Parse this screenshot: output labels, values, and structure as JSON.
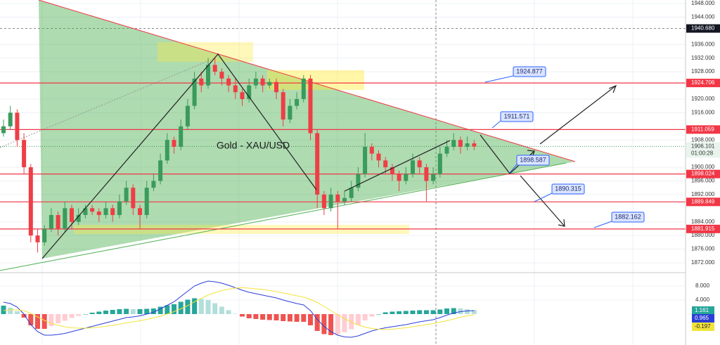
{
  "chart_data": [
    {
      "type": "candlestick",
      "title": "Gold - XAU/USD",
      "ohlc": [
        [
          1910,
          1914,
          1909,
          1912
        ],
        [
          1912,
          1918,
          1911,
          1916
        ],
        [
          1916,
          1917,
          1906,
          1908
        ],
        [
          1908,
          1910,
          1898,
          1900
        ],
        [
          1900,
          1901,
          1878,
          1880
        ],
        [
          1880,
          1882,
          1875,
          1878
        ],
        [
          1878,
          1883,
          1877,
          1882
        ],
        [
          1882,
          1888,
          1881,
          1886
        ],
        [
          1886,
          1887,
          1880,
          1882
        ],
        [
          1882,
          1890,
          1881,
          1888
        ],
        [
          1888,
          1889,
          1882,
          1884
        ],
        [
          1884,
          1888,
          1883,
          1886
        ],
        [
          1886,
          1889,
          1885,
          1888
        ],
        [
          1888,
          1889,
          1886,
          1887
        ],
        [
          1887,
          1888,
          1884,
          1886
        ],
        [
          1886,
          1890,
          1885,
          1888
        ],
        [
          1888,
          1889,
          1884,
          1886
        ],
        [
          1886,
          1892,
          1885,
          1890
        ],
        [
          1890,
          1896,
          1889,
          1894
        ],
        [
          1894,
          1895,
          1886,
          1888
        ],
        [
          1888,
          1889,
          1882,
          1886
        ],
        [
          1886,
          1896,
          1885,
          1894
        ],
        [
          1894,
          1898,
          1893,
          1896
        ],
        [
          1896,
          1904,
          1895,
          1902
        ],
        [
          1902,
          1910,
          1901,
          1908
        ],
        [
          1908,
          1909,
          1904,
          1906
        ],
        [
          1906,
          1914,
          1905,
          1912
        ],
        [
          1912,
          1920,
          1911,
          1918
        ],
        [
          1918,
          1928,
          1917,
          1926
        ],
        [
          1926,
          1928,
          1922,
          1924
        ],
        [
          1924,
          1932,
          1923,
          1930
        ],
        [
          1930,
          1932,
          1927,
          1928
        ],
        [
          1928,
          1929,
          1924,
          1926
        ],
        [
          1926,
          1927,
          1922,
          1924
        ],
        [
          1924,
          1926,
          1920,
          1922
        ],
        [
          1922,
          1923,
          1918,
          1920
        ],
        [
          1920,
          1926,
          1919,
          1924
        ],
        [
          1924,
          1928,
          1923,
          1926
        ],
        [
          1926,
          1927,
          1922,
          1924
        ],
        [
          1924,
          1926,
          1923,
          1925
        ],
        [
          1925,
          1926,
          1920,
          1922
        ],
        [
          1922,
          1923,
          1912,
          1914
        ],
        [
          1914,
          1920,
          1913,
          1918
        ],
        [
          1918,
          1922,
          1917,
          1920
        ],
        [
          1920,
          1927,
          1919,
          1926
        ],
        [
          1926,
          1927,
          1908,
          1910
        ],
        [
          1910,
          1911,
          1888,
          1892
        ],
        [
          1892,
          1893,
          1886,
          1888
        ],
        [
          1888,
          1894,
          1887,
          1892
        ],
        [
          1892,
          1893,
          1882,
          1890
        ],
        [
          1890,
          1893,
          1889,
          1891
        ],
        [
          1891,
          1896,
          1890,
          1894
        ],
        [
          1894,
          1900,
          1893,
          1898
        ],
        [
          1898,
          1910,
          1897,
          1906
        ],
        [
          1906,
          1907,
          1902,
          1904
        ],
        [
          1904,
          1905,
          1900,
          1902
        ],
        [
          1902,
          1903,
          1898,
          1900
        ],
        [
          1900,
          1901,
          1896,
          1898
        ],
        [
          1898,
          1899,
          1893,
          1896
        ],
        [
          1896,
          1900,
          1895,
          1898
        ],
        [
          1898,
          1904,
          1897,
          1902
        ],
        [
          1902,
          1903,
          1898,
          1900
        ],
        [
          1900,
          1901,
          1890,
          1896
        ],
        [
          1896,
          1900,
          1895,
          1898
        ],
        [
          1898,
          1906,
          1897,
          1904
        ],
        [
          1904,
          1908,
          1903,
          1906
        ],
        [
          1906,
          1910,
          1905,
          1908
        ],
        [
          1908,
          1909,
          1904,
          1906
        ],
        [
          1906,
          1909,
          1905,
          1907
        ],
        [
          1907,
          1908,
          1905,
          1906.101
        ]
      ],
      "up_color": "#3a9b5c",
      "down_color": "#ef3e45",
      "ylim": [
        1869.73,
        1949.03
      ],
      "yticks": [
        {
          "value": 1948,
          "label": "1948.000"
        },
        {
          "value": 1944,
          "label": "1944.000"
        },
        {
          "value": 1936,
          "label": "1936.000"
        },
        {
          "value": 1932,
          "label": "1932.000"
        },
        {
          "value": 1928,
          "label": "1928.000"
        },
        {
          "value": 1920,
          "label": "1920.000"
        },
        {
          "value": 1916,
          "label": "1916.000"
        },
        {
          "value": 1908,
          "label": "1908.000"
        },
        {
          "value": 1900,
          "label": "1900.000"
        },
        {
          "value": 1896,
          "label": "1896.000"
        },
        {
          "value": 1892,
          "label": "1892.000"
        },
        {
          "value": 1884,
          "label": "1884.000"
        },
        {
          "value": 1880,
          "label": "1880.000"
        },
        {
          "value": 1876,
          "label": "1876.000"
        },
        {
          "value": 1872,
          "label": "1872.000"
        }
      ],
      "grid": true,
      "levels": [
        1924.706,
        1911.059,
        1898.024,
        1889.849,
        1881.915
      ],
      "level_color": "#f23645",
      "crosshair": {
        "value": 1940.68,
        "label": "1940.680"
      },
      "countdown": "01:00:28",
      "annotations": [
        1924.877,
        1911.571,
        1898.587,
        1890.315,
        1882.162
      ]
    },
    {
      "type": "macd",
      "ylim": [
        -8.8,
        11.4
      ],
      "yticks": [
        {
          "value": 8,
          "label": "8.000"
        },
        {
          "value": 4,
          "label": "4.000"
        }
      ],
      "histogram": {
        "up_color": "#26a69a",
        "up_fade": "#b2dfdb",
        "down_color": "#ef5350",
        "down_fade": "#ffcdd2",
        "values": [
          2.4,
          1.8,
          0.8,
          -1,
          -3.2,
          -4.2,
          -4.2,
          -3.4,
          -2.6,
          -1.9,
          -1.1,
          -0.5,
          0,
          0.4,
          0.7,
          1,
          1.2,
          1.4,
          1.5,
          1.4,
          1.4,
          1.5,
          1.6,
          2.1,
          2.5,
          2.8,
          3.5,
          4.1,
          4.5,
          4.3,
          4,
          3.1,
          2.1,
          1.1,
          0.1,
          -0.7,
          -1.2,
          -1.4,
          -1.6,
          -1.7,
          -1.8,
          -2,
          -2.1,
          -2.2,
          -2.2,
          -3.2,
          -4.8,
          -5.7,
          -6,
          -5.8,
          -5.2,
          -4.3,
          -3.1,
          -1.8,
          -0.7,
          0,
          0.5,
          0.7,
          0.8,
          0.9,
          1,
          1.1,
          1.1,
          1.1,
          1.3,
          1.6,
          1.7,
          1.6,
          1.4,
          1.161
        ]
      },
      "series": [
        {
          "color": "#2c3ed6",
          "values": [
            3.4,
            3,
            2,
            0,
            -3,
            -5,
            -6,
            -6,
            -5.8,
            -5.5,
            -5,
            -4.5,
            -4,
            -3.5,
            -3,
            -2.5,
            -2,
            -1.5,
            -1,
            -0.8,
            -0.5,
            0,
            0.5,
            1.5,
            2.5,
            3.5,
            5,
            6.5,
            8,
            8.8,
            9.4,
            9.2,
            8.8,
            8.2,
            7.5,
            6.8,
            6.2,
            5.8,
            5.4,
            5,
            4.6,
            4,
            3.5,
            3,
            2.6,
            1,
            -1.5,
            -3.5,
            -5,
            -6,
            -6.5,
            -6.6,
            -6.2,
            -5.5,
            -4.8,
            -4.3,
            -3.9,
            -3.6,
            -3.3,
            -3,
            -2.6,
            -2.2,
            -1.9,
            -1.6,
            -1,
            -0.3,
            0.3,
            0.7,
            0.9,
            0.965
          ]
        },
        {
          "color": "#f2e33a",
          "values": [
            1,
            1.2,
            1.2,
            1,
            0.2,
            -0.8,
            -1.8,
            -2.6,
            -3.2,
            -3.6,
            -3.9,
            -4,
            -4,
            -3.9,
            -3.7,
            -3.5,
            -3.2,
            -2.9,
            -2.5,
            -2.2,
            -1.9,
            -1.5,
            -1.1,
            -0.6,
            0,
            0.7,
            1.5,
            2.4,
            3.5,
            4.5,
            5.4,
            6.1,
            6.7,
            7.1,
            7.4,
            7.5,
            7.4,
            7.2,
            7,
            6.7,
            6.4,
            6,
            5.6,
            5.2,
            4.8,
            4.2,
            3.3,
            2.2,
            1,
            -0.2,
            -1.3,
            -2.3,
            -3.1,
            -3.7,
            -4.1,
            -4.3,
            -4.4,
            -4.3,
            -4.1,
            -3.9,
            -3.6,
            -3.3,
            -3,
            -2.7,
            -2.3,
            -1.9,
            -1.4,
            -0.9,
            -0.5,
            -0.197
          ]
        }
      ]
    }
  ]
}
